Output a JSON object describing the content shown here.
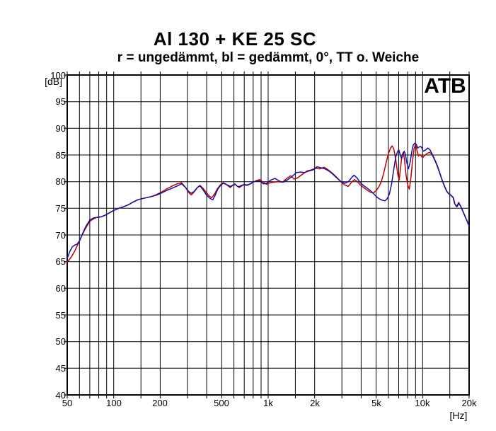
{
  "header": {
    "title": "Al 130 + KE 25 SC",
    "subtitle": "r = ungedämmt, bl = gedämmt, 0°, TT o. Weiche"
  },
  "watermark": "ATB",
  "chart_data": {
    "type": "line",
    "x_scale": "log",
    "xlabel": "[Hz]",
    "ylabel": "[dB]",
    "xlim": [
      50,
      20000
    ],
    "ylim": [
      40,
      100
    ],
    "grid": true,
    "y_ticks": [
      100,
      95,
      90,
      85,
      80,
      75,
      70,
      65,
      60,
      55,
      50,
      45,
      40
    ],
    "x_gridlines": [
      50,
      60,
      70,
      80,
      90,
      100,
      150,
      200,
      300,
      400,
      500,
      600,
      700,
      800,
      900,
      1000,
      1500,
      2000,
      3000,
      4000,
      5000,
      6000,
      7000,
      8000,
      9000,
      10000,
      15000,
      20000
    ],
    "x_tick_labels": [
      {
        "f": 50,
        "label": "50"
      },
      {
        "f": 100,
        "label": "100"
      },
      {
        "f": 200,
        "label": "200"
      },
      {
        "f": 500,
        "label": "500"
      },
      {
        "f": 1000,
        "label": "1k"
      },
      {
        "f": 2000,
        "label": "2k"
      },
      {
        "f": 5000,
        "label": "5k"
      },
      {
        "f": 10000,
        "label": "10k"
      },
      {
        "f": 20000,
        "label": "20k"
      }
    ],
    "series": [
      {
        "name": "r = ungedämmt",
        "color": "#c00000",
        "points": [
          [
            50,
            64.9
          ],
          [
            53,
            65.8
          ],
          [
            56,
            67.0
          ],
          [
            59,
            68.4
          ],
          [
            62,
            69.8
          ],
          [
            65,
            71.0
          ],
          [
            68,
            72.0
          ],
          [
            71,
            72.7
          ],
          [
            75,
            73.1
          ],
          [
            78,
            73.3
          ],
          [
            83,
            73.4
          ],
          [
            88,
            73.7
          ],
          [
            93,
            74.1
          ],
          [
            100,
            74.6
          ],
          [
            108,
            75.0
          ],
          [
            116,
            75.3
          ],
          [
            125,
            75.7
          ],
          [
            134,
            76.2
          ],
          [
            143,
            76.6
          ],
          [
            152,
            76.8
          ],
          [
            163,
            77.0
          ],
          [
            175,
            77.2
          ],
          [
            190,
            77.6
          ],
          [
            205,
            78.1
          ],
          [
            222,
            78.7
          ],
          [
            240,
            79.2
          ],
          [
            258,
            79.6
          ],
          [
            275,
            79.8
          ],
          [
            292,
            78.9
          ],
          [
            305,
            78.0
          ],
          [
            318,
            77.5
          ],
          [
            332,
            78.1
          ],
          [
            348,
            78.9
          ],
          [
            362,
            79.3
          ],
          [
            380,
            78.7
          ],
          [
            398,
            77.9
          ],
          [
            415,
            77.3
          ],
          [
            432,
            77.0
          ],
          [
            450,
            77.7
          ],
          [
            470,
            78.7
          ],
          [
            490,
            79.4
          ],
          [
            510,
            79.8
          ],
          [
            530,
            79.6
          ],
          [
            550,
            79.2
          ],
          [
            568,
            78.9
          ],
          [
            588,
            79.3
          ],
          [
            608,
            79.6
          ],
          [
            628,
            79.2
          ],
          [
            648,
            78.9
          ],
          [
            668,
            79.1
          ],
          [
            695,
            79.5
          ],
          [
            725,
            79.4
          ],
          [
            760,
            79.5
          ],
          [
            800,
            79.9
          ],
          [
            840,
            80.2
          ],
          [
            880,
            80.4
          ],
          [
            925,
            79.9
          ],
          [
            975,
            79.5
          ],
          [
            1030,
            79.8
          ],
          [
            1090,
            79.9
          ],
          [
            1160,
            80.0
          ],
          [
            1240,
            79.9
          ],
          [
            1320,
            80.6
          ],
          [
            1400,
            81.1
          ],
          [
            1470,
            80.5
          ],
          [
            1550,
            80.7
          ],
          [
            1650,
            81.3
          ],
          [
            1780,
            82.0
          ],
          [
            1900,
            82.2
          ],
          [
            2030,
            82.5
          ],
          [
            2160,
            82.4
          ],
          [
            2300,
            82.7
          ],
          [
            2450,
            82.2
          ],
          [
            2600,
            81.6
          ],
          [
            2780,
            80.8
          ],
          [
            2950,
            80.0
          ],
          [
            3120,
            79.4
          ],
          [
            3300,
            79.1
          ],
          [
            3470,
            79.9
          ],
          [
            3620,
            80.4
          ],
          [
            3780,
            80.0
          ],
          [
            3950,
            79.4
          ],
          [
            4150,
            78.9
          ],
          [
            4380,
            78.4
          ],
          [
            4600,
            78.0
          ],
          [
            4800,
            77.9
          ],
          [
            5000,
            78.3
          ],
          [
            5200,
            79.0
          ],
          [
            5400,
            80.0
          ],
          [
            5600,
            81.6
          ],
          [
            5800,
            83.5
          ],
          [
            6000,
            85.2
          ],
          [
            6200,
            86.3
          ],
          [
            6350,
            86.7
          ],
          [
            6500,
            86.2
          ],
          [
            6700,
            84.2
          ],
          [
            6900,
            81.4
          ],
          [
            7050,
            80.3
          ],
          [
            7200,
            82.6
          ],
          [
            7350,
            84.9
          ],
          [
            7500,
            85.5
          ],
          [
            7650,
            83.9
          ],
          [
            7800,
            81.4
          ],
          [
            8000,
            79.4
          ],
          [
            8200,
            78.6
          ],
          [
            8400,
            80.8
          ],
          [
            8600,
            83.8
          ],
          [
            8800,
            86.2
          ],
          [
            9000,
            87.0
          ],
          [
            9200,
            85.8
          ],
          [
            9400,
            84.8
          ],
          [
            9600,
            85.1
          ],
          [
            9800,
            84.8
          ],
          [
            10000,
            84.5
          ],
          [
            10300,
            84.9
          ],
          [
            10700,
            85.3
          ],
          [
            11100,
            85.5
          ],
          [
            11500,
            85.1
          ],
          [
            11900,
            84.2
          ],
          [
            12400,
            83.0
          ],
          [
            12900,
            81.6
          ],
          [
            13400,
            80.2
          ],
          [
            13900,
            79.0
          ],
          [
            14300,
            78.2
          ],
          [
            14700,
            77.8
          ],
          [
            15200,
            77.5
          ],
          [
            15700,
            77.1
          ],
          [
            16100,
            75.9
          ],
          [
            16600,
            75.3
          ],
          [
            17100,
            76.1
          ],
          [
            17600,
            75.4
          ],
          [
            18100,
            74.6
          ],
          [
            18800,
            73.5
          ],
          [
            19400,
            72.6
          ],
          [
            20000,
            71.7
          ]
        ]
      },
      {
        "name": "bl = gedämmt",
        "color": "#1111aa",
        "points": [
          [
            50,
            65.6
          ],
          [
            52,
            66.9
          ],
          [
            54,
            67.8
          ],
          [
            56,
            68.1
          ],
          [
            58,
            68.3
          ],
          [
            60,
            68.9
          ],
          [
            63,
            70.3
          ],
          [
            66,
            71.6
          ],
          [
            70,
            72.8
          ],
          [
            74,
            73.2
          ],
          [
            78,
            73.3
          ],
          [
            83,
            73.4
          ],
          [
            88,
            73.7
          ],
          [
            93,
            74.1
          ],
          [
            100,
            74.6
          ],
          [
            108,
            75.0
          ],
          [
            116,
            75.3
          ],
          [
            125,
            75.7
          ],
          [
            134,
            76.2
          ],
          [
            143,
            76.6
          ],
          [
            152,
            76.8
          ],
          [
            163,
            77.0
          ],
          [
            175,
            77.2
          ],
          [
            190,
            77.5
          ],
          [
            205,
            77.9
          ],
          [
            222,
            78.4
          ],
          [
            240,
            78.8
          ],
          [
            258,
            79.2
          ],
          [
            275,
            79.6
          ],
          [
            292,
            78.9
          ],
          [
            305,
            78.2
          ],
          [
            318,
            77.8
          ],
          [
            332,
            78.2
          ],
          [
            348,
            78.9
          ],
          [
            362,
            79.2
          ],
          [
            380,
            78.4
          ],
          [
            398,
            77.5
          ],
          [
            418,
            76.9
          ],
          [
            438,
            76.6
          ],
          [
            455,
            77.5
          ],
          [
            472,
            78.6
          ],
          [
            492,
            79.3
          ],
          [
            512,
            79.7
          ],
          [
            532,
            79.5
          ],
          [
            552,
            79.3
          ],
          [
            572,
            79.1
          ],
          [
            592,
            79.4
          ],
          [
            612,
            79.5
          ],
          [
            632,
            79.1
          ],
          [
            652,
            79.1
          ],
          [
            672,
            79.3
          ],
          [
            700,
            79.4
          ],
          [
            730,
            79.3
          ],
          [
            765,
            79.6
          ],
          [
            805,
            80.0
          ],
          [
            845,
            80.1
          ],
          [
            885,
            80.1
          ],
          [
            930,
            79.6
          ],
          [
            980,
            79.7
          ],
          [
            1040,
            80.3
          ],
          [
            1110,
            80.6
          ],
          [
            1180,
            80.1
          ],
          [
            1250,
            79.9
          ],
          [
            1330,
            80.3
          ],
          [
            1420,
            80.9
          ],
          [
            1520,
            81.7
          ],
          [
            1620,
            81.8
          ],
          [
            1720,
            81.7
          ],
          [
            1830,
            82.0
          ],
          [
            1950,
            82.2
          ],
          [
            2070,
            82.8
          ],
          [
            2200,
            82.6
          ],
          [
            2330,
            82.4
          ],
          [
            2470,
            82.0
          ],
          [
            2620,
            81.4
          ],
          [
            2800,
            80.6
          ],
          [
            2970,
            80.0
          ],
          [
            3140,
            79.7
          ],
          [
            3310,
            80.0
          ],
          [
            3480,
            80.8
          ],
          [
            3600,
            81.2
          ],
          [
            3760,
            80.7
          ],
          [
            3930,
            79.9
          ],
          [
            4130,
            79.3
          ],
          [
            4360,
            78.8
          ],
          [
            4600,
            78.3
          ],
          [
            4830,
            77.7
          ],
          [
            5060,
            77.1
          ],
          [
            5290,
            76.7
          ],
          [
            5500,
            76.5
          ],
          [
            5700,
            76.4
          ],
          [
            5900,
            76.8
          ],
          [
            6100,
            77.7
          ],
          [
            6300,
            79.6
          ],
          [
            6500,
            82.2
          ],
          [
            6700,
            84.6
          ],
          [
            6850,
            85.5
          ],
          [
            7000,
            86.0
          ],
          [
            7150,
            85.1
          ],
          [
            7300,
            84.3
          ],
          [
            7450,
            85.1
          ],
          [
            7600,
            85.7
          ],
          [
            7750,
            85.0
          ],
          [
            7900,
            83.6
          ],
          [
            8100,
            82.4
          ],
          [
            8300,
            83.6
          ],
          [
            8500,
            85.6
          ],
          [
            8700,
            86.9
          ],
          [
            8900,
            87.2
          ],
          [
            9100,
            87.0
          ],
          [
            9300,
            86.3
          ],
          [
            9500,
            86.5
          ],
          [
            9700,
            86.6
          ],
          [
            9900,
            86.3
          ],
          [
            10100,
            85.7
          ],
          [
            10400,
            85.9
          ],
          [
            10800,
            86.3
          ],
          [
            11200,
            85.9
          ],
          [
            11600,
            85.0
          ],
          [
            12000,
            84.1
          ],
          [
            12500,
            82.9
          ],
          [
            13000,
            81.4
          ],
          [
            13500,
            80.0
          ],
          [
            14000,
            78.9
          ],
          [
            14400,
            78.1
          ],
          [
            14800,
            77.7
          ],
          [
            15300,
            77.4
          ],
          [
            15800,
            77.0
          ],
          [
            16200,
            75.8
          ],
          [
            16700,
            75.3
          ],
          [
            17200,
            76.0
          ],
          [
            17700,
            75.3
          ],
          [
            18200,
            74.5
          ],
          [
            18900,
            73.4
          ],
          [
            19500,
            72.5
          ],
          [
            20000,
            71.6
          ]
        ]
      }
    ]
  }
}
